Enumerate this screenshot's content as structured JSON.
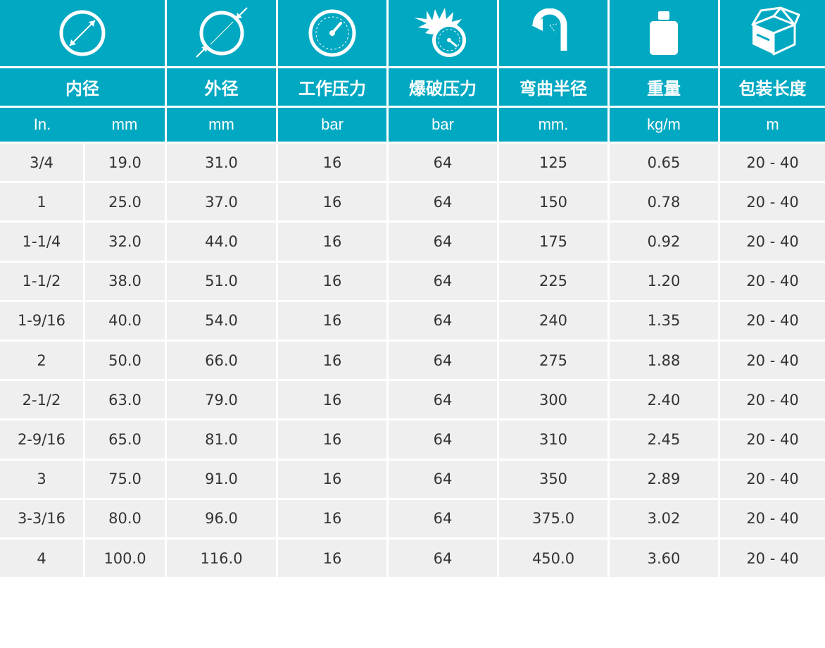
{
  "colors": {
    "header": "#00a8c1",
    "row": "#efefef",
    "text": "#333333",
    "header_text": "#ffffff"
  },
  "icons": [
    "inner-diameter-icon",
    "outer-diameter-icon",
    "pressure-gauge-icon",
    "burst-pressure-icon",
    "bend-radius-icon",
    "weight-icon",
    "package-box-icon"
  ],
  "headers": [
    "内径",
    "外径",
    "工作压力",
    "爆破压力",
    "弯曲半径",
    "重量",
    "包装长度"
  ],
  "units": [
    "In.",
    "mm",
    "mm",
    "bar",
    "bar",
    "mm.",
    "kg/m",
    "m"
  ],
  "rows": [
    [
      "3/4",
      "19.0",
      "31.0",
      "16",
      "64",
      "125",
      "0.65",
      "20 - 40"
    ],
    [
      "1",
      "25.0",
      "37.0",
      "16",
      "64",
      "150",
      "0.78",
      "20 - 40"
    ],
    [
      "1-1/4",
      "32.0",
      "44.0",
      "16",
      "64",
      "175",
      "0.92",
      "20 - 40"
    ],
    [
      "1-1/2",
      "38.0",
      "51.0",
      "16",
      "64",
      "225",
      "1.20",
      "20 - 40"
    ],
    [
      "1-9/16",
      "40.0",
      "54.0",
      "16",
      "64",
      "240",
      "1.35",
      "20 - 40"
    ],
    [
      "2",
      "50.0",
      "66.0",
      "16",
      "64",
      "275",
      "1.88",
      "20 - 40"
    ],
    [
      "2-1/2",
      "63.0",
      "79.0",
      "16",
      "64",
      "300",
      "2.40",
      "20 - 40"
    ],
    [
      "2-9/16",
      "65.0",
      "81.0",
      "16",
      "64",
      "310",
      "2.45",
      "20 - 40"
    ],
    [
      "3",
      "75.0",
      "91.0",
      "16",
      "64",
      "350",
      "2.89",
      "20 - 40"
    ],
    [
      "3-3/16",
      "80.0",
      "96.0",
      "16",
      "64",
      "375.0",
      "3.02",
      "20 - 40"
    ],
    [
      "4",
      "100.0",
      "116.0",
      "16",
      "64",
      "450.0",
      "3.60",
      "20 - 40"
    ]
  ]
}
